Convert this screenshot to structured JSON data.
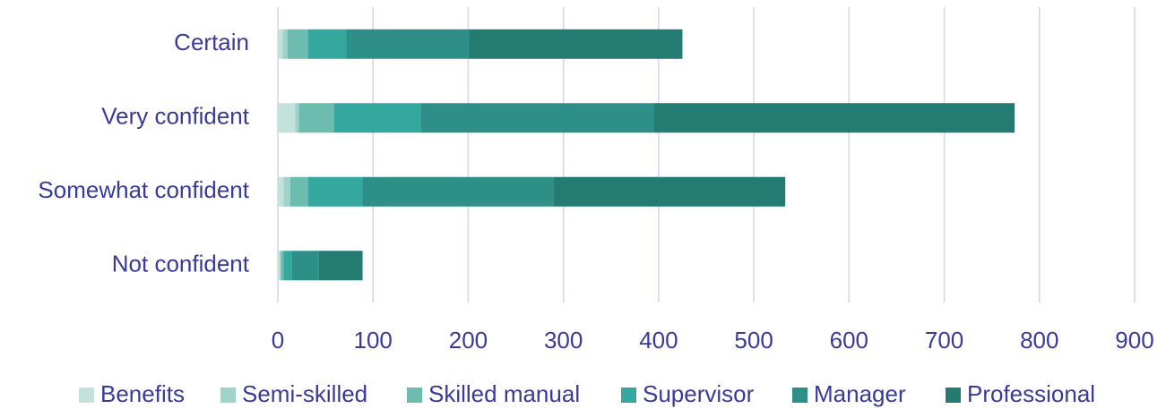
{
  "chart_data": {
    "type": "stacked_bar_horizontal",
    "categories": [
      "Certain",
      "Very confident",
      "Somewhat confident",
      "Not confident"
    ],
    "series": [
      {
        "name": "Benefits",
        "color": "#c4e2dc",
        "values": [
          5,
          18,
          6,
          2
        ]
      },
      {
        "name": "Semi-skilled",
        "color": "#9fd3c9",
        "values": [
          5,
          4,
          7,
          1
        ]
      },
      {
        "name": "Skilled manual",
        "color": "#6cbcb0",
        "values": [
          22,
          37,
          19,
          3
        ]
      },
      {
        "name": "Supervisor",
        "color": "#34a89e",
        "values": [
          40,
          91,
          57,
          9
        ]
      },
      {
        "name": "Manager",
        "color": "#2e8f88",
        "values": [
          129,
          245,
          201,
          28
        ]
      },
      {
        "name": "Professional",
        "color": "#237b72",
        "values": [
          224,
          379,
          243,
          46
        ]
      }
    ],
    "xlim": [
      0,
      900
    ],
    "xticks": [
      0,
      100,
      200,
      300,
      400,
      500,
      600,
      700,
      800,
      900
    ],
    "grid": true,
    "legend": "bottom"
  }
}
